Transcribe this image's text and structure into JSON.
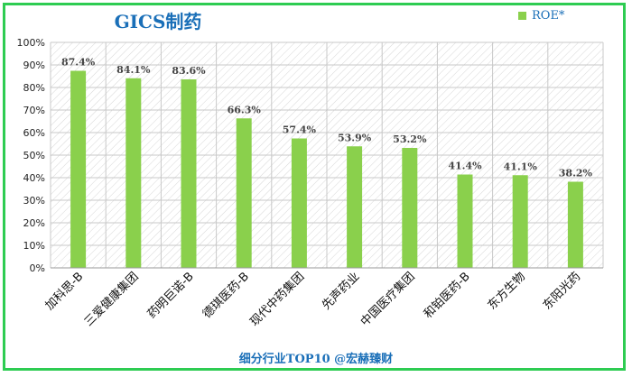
{
  "chart_data": {
    "type": "bar",
    "title": "GICS制药",
    "legend": "ROE*",
    "legend_position": "top-right",
    "color": "#8ad04c",
    "ylim": [
      0,
      100
    ],
    "yticks": [
      "0%",
      "10%",
      "20%",
      "30%",
      "40%",
      "50%",
      "60%",
      "70%",
      "80%",
      "90%",
      "100%"
    ],
    "grid": true,
    "categories": [
      "加科思-B",
      "三爱健康集团",
      "药明巨诺-B",
      "德琪医药-B",
      "现代中药集团",
      "先声药业",
      "中国医疗集团",
      "和铂医药-B",
      "东方生物",
      "东阳光药"
    ],
    "values": [
      87.4,
      84.1,
      83.6,
      66.3,
      57.4,
      53.9,
      53.2,
      41.4,
      41.1,
      38.2
    ],
    "labels": [
      "87.4%",
      "84.1%",
      "83.6%",
      "66.3%",
      "57.4%",
      "53.9%",
      "53.2%",
      "41.4%",
      "41.1%",
      "38.2%"
    ]
  },
  "footer": "细分行业TOP10 @宏赫臻财"
}
